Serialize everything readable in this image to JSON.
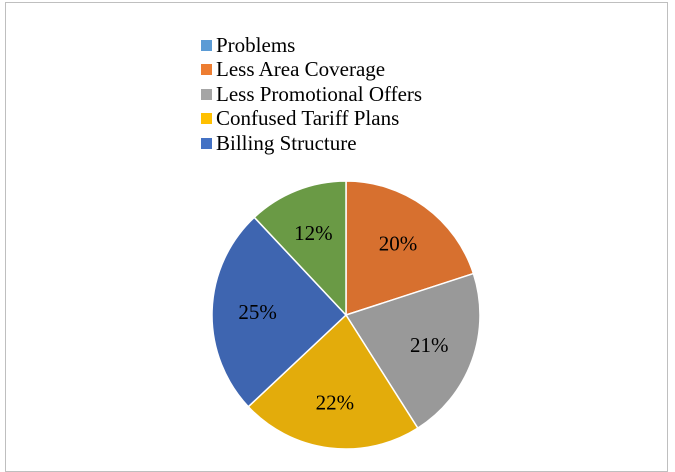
{
  "chart_data": {
    "type": "pie",
    "title": "",
    "legend_position": "top",
    "legend": [
      {
        "label": "Problems",
        "color": "#5b9bd5"
      },
      {
        "label": "Less Area Coverage",
        "color": "#ed7d31"
      },
      {
        "label": "Less Promotional Offers",
        "color": "#a5a5a5"
      },
      {
        "label": "Confused Tariff Plans",
        "color": "#ffc000"
      },
      {
        "label": "Billing Structure",
        "color": "#4472c4"
      }
    ],
    "slices": [
      {
        "value": 20,
        "label": "20%",
        "color": "#d7702f"
      },
      {
        "value": 21,
        "label": "21%",
        "color": "#999999"
      },
      {
        "value": 22,
        "label": "22%",
        "color": "#e3ac0b"
      },
      {
        "value": 25,
        "label": "25%",
        "color": "#3e65b0"
      },
      {
        "value": 12,
        "label": "12%",
        "color": "#6a9a45"
      }
    ]
  }
}
